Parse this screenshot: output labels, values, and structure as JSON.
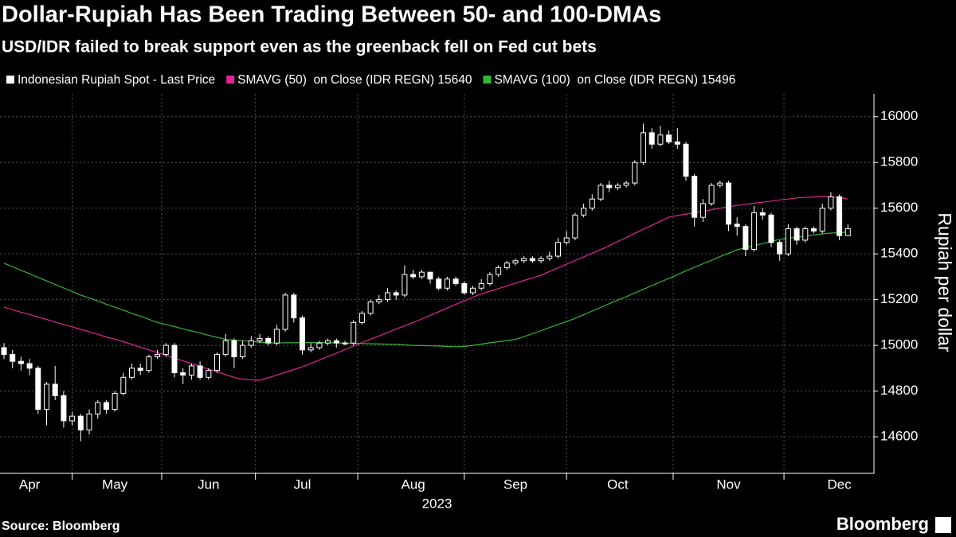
{
  "chart_data": {
    "type": "candlestick",
    "title": "Dollar-Rupiah Has Been Trading Between 50- and 100-DMAs",
    "subtitle": "USD/IDR failed to break support even as the greenback fell on Fed cut bets",
    "y_label": "Rupiah per dollar",
    "year_label": "2023",
    "source": "Source: Bloomberg",
    "brand": "Bloomberg",
    "grid": true,
    "ylim": [
      14440,
      16100
    ],
    "yticks": [
      14600,
      14800,
      15000,
      15200,
      15400,
      15600,
      15800,
      16000
    ],
    "categories": [
      null,
      null,
      null,
      "Apr",
      null,
      null,
      null,
      null,
      null,
      null,
      null,
      null,
      null,
      "May",
      null,
      null,
      null,
      null,
      null,
      null,
      null,
      null,
      null,
      null,
      "Jun",
      null,
      null,
      null,
      null,
      null,
      null,
      null,
      null,
      null,
      null,
      "Jul",
      null,
      null,
      null,
      null,
      null,
      null,
      null,
      null,
      null,
      null,
      null,
      null,
      "Aug",
      null,
      null,
      null,
      null,
      null,
      null,
      null,
      null,
      null,
      null,
      null,
      "Sep",
      null,
      null,
      null,
      null,
      null,
      null,
      null,
      null,
      null,
      null,
      null,
      "Oct",
      null,
      null,
      null,
      null,
      null,
      null,
      null,
      null,
      null,
      null,
      null,
      null,
      "Nov",
      null,
      null,
      null,
      null,
      null,
      null,
      null,
      null,
      null,
      null,
      null,
      null,
      "Dec",
      null
    ],
    "series": [
      {
        "name": "Indonesian Rupiah Spot - Last Price",
        "type": "candlestick",
        "color": "#ffffff",
        "open": [
          14990,
          14960,
          14930,
          14920,
          14900,
          14720,
          14830,
          14780,
          14670,
          14690,
          14630,
          14700,
          14750,
          14720,
          14790,
          14860,
          14900,
          14890,
          14950,
          14960,
          15000,
          14880,
          14870,
          14910,
          14860,
          14890,
          14960,
          15020,
          14950,
          15000,
          15020,
          15030,
          15010,
          15070,
          15220,
          15120,
          14980,
          14990,
          15010,
          15020,
          15010,
          15010,
          15100,
          15140,
          15190,
          15200,
          15230,
          15220,
          15310,
          15300,
          15320,
          15290,
          15250,
          15290,
          15270,
          15230,
          15250,
          15270,
          15310,
          15340,
          15360,
          15370,
          15380,
          15370,
          15380,
          15390,
          15450,
          15470,
          15570,
          15600,
          15640,
          15700,
          15690,
          15700,
          15710,
          15800,
          15930,
          15880,
          15920,
          15890,
          15880,
          15740,
          15560,
          15620,
          15700,
          15710,
          15530,
          15520,
          15420,
          15580,
          15570,
          15450,
          15400,
          15510,
          15460,
          15510,
          15500,
          15600,
          15650,
          15480
        ],
        "high": [
          15010,
          14980,
          14950,
          14940,
          14910,
          14840,
          14910,
          14800,
          14710,
          14700,
          14720,
          14760,
          14760,
          14800,
          14880,
          14920,
          14920,
          14960,
          14980,
          15010,
          15010,
          14900,
          14920,
          14930,
          14900,
          14970,
          15050,
          15030,
          15020,
          15040,
          15050,
          15040,
          15090,
          15230,
          15230,
          15130,
          15010,
          15020,
          15030,
          15030,
          15020,
          15110,
          15150,
          15200,
          15220,
          15250,
          15240,
          15350,
          15330,
          15330,
          15320,
          15300,
          15300,
          15300,
          15280,
          15260,
          15290,
          15320,
          15350,
          15370,
          15380,
          15390,
          15390,
          15390,
          15410,
          15470,
          15500,
          15580,
          15620,
          15660,
          15710,
          15720,
          15710,
          15720,
          15810,
          15970,
          15950,
          15960,
          15940,
          15950,
          15890,
          15750,
          15640,
          15710,
          15720,
          15720,
          15560,
          15530,
          15610,
          15600,
          15580,
          15460,
          15530,
          15520,
          15520,
          15520,
          15620,
          15670,
          15660,
          15530
        ],
        "low": [
          14940,
          14900,
          14890,
          14870,
          14700,
          14650,
          14760,
          14640,
          14650,
          14580,
          14610,
          14680,
          14700,
          14710,
          14780,
          14850,
          14870,
          14880,
          14940,
          14950,
          14860,
          14830,
          14850,
          14850,
          14850,
          14880,
          14950,
          14900,
          14940,
          14990,
          15010,
          15000,
          15000,
          15060,
          15100,
          14960,
          14970,
          14980,
          15000,
          14990,
          15000,
          15000,
          15090,
          15130,
          15180,
          15190,
          15200,
          15210,
          15290,
          15290,
          15270,
          15240,
          15240,
          15260,
          15220,
          15220,
          15240,
          15260,
          15300,
          15330,
          15350,
          15360,
          15360,
          15360,
          15370,
          15380,
          15440,
          15460,
          15560,
          15590,
          15630,
          15670,
          15680,
          15690,
          15700,
          15790,
          15860,
          15870,
          15880,
          15860,
          15720,
          15520,
          15540,
          15610,
          15690,
          15500,
          15480,
          15390,
          15410,
          15550,
          15430,
          15370,
          15390,
          15440,
          15450,
          15490,
          15490,
          15590,
          15460,
          15490
        ],
        "close": [
          14960,
          14930,
          14920,
          14900,
          14720,
          14830,
          14780,
          14670,
          14690,
          14630,
          14700,
          14750,
          14720,
          14790,
          14860,
          14900,
          14890,
          14950,
          14960,
          15000,
          14880,
          14870,
          14910,
          14860,
          14890,
          14960,
          15020,
          14950,
          15000,
          15020,
          15030,
          15010,
          15070,
          15220,
          15120,
          14980,
          14990,
          15010,
          15020,
          15010,
          15010,
          15100,
          15140,
          15190,
          15200,
          15230,
          15220,
          15310,
          15300,
          15320,
          15290,
          15250,
          15290,
          15270,
          15230,
          15250,
          15270,
          15310,
          15340,
          15360,
          15370,
          15380,
          15370,
          15380,
          15390,
          15450,
          15470,
          15570,
          15600,
          15640,
          15700,
          15690,
          15700,
          15710,
          15800,
          15930,
          15880,
          15920,
          15890,
          15880,
          15740,
          15560,
          15620,
          15700,
          15710,
          15530,
          15520,
          15420,
          15580,
          15570,
          15450,
          15400,
          15510,
          15460,
          15510,
          15500,
          15600,
          15650,
          15480,
          15510
        ]
      },
      {
        "name": "SMAVG (50)  on Close (IDR REGN) 15640",
        "type": "line",
        "color": "#e0249a",
        "values": [
          15167,
          15156,
          15145,
          15135,
          15124,
          15113,
          15102,
          15091,
          15081,
          15070,
          15059,
          15048,
          15037,
          15027,
          15016,
          15004,
          14992,
          14980,
          14968,
          14956,
          14944,
          14932,
          14920,
          14908,
          14896,
          14884,
          14872,
          14860,
          14852,
          14849,
          14847,
          14858,
          14870,
          14882,
          14894,
          14906,
          14921,
          14936,
          14951,
          14966,
          14981,
          14997,
          15012,
          15027,
          15041,
          15056,
          15071,
          15086,
          15100,
          15115,
          15131,
          15147,
          15163,
          15179,
          15195,
          15211,
          15225,
          15237,
          15248,
          15260,
          15272,
          15284,
          15295,
          15307,
          15323,
          15339,
          15355,
          15371,
          15387,
          15403,
          15419,
          15436,
          15454,
          15472,
          15490,
          15508,
          15525,
          15543,
          15561,
          15568,
          15574,
          15580,
          15587,
          15593,
          15600,
          15606,
          15612,
          15617,
          15622,
          15626,
          15631,
          15636,
          15640,
          15645,
          15647,
          15649,
          15651,
          15650,
          15646,
          15640
        ]
      },
      {
        "name": "SMAVG (100)  on Close (IDR REGN) 15496",
        "type": "line",
        "color": "#35b535",
        "values": [
          15359,
          15344,
          15328,
          15313,
          15297,
          15282,
          15266,
          15251,
          15236,
          15220,
          15207,
          15194,
          15180,
          15167,
          15154,
          15140,
          15127,
          15114,
          15100,
          15091,
          15082,
          15072,
          15063,
          15054,
          15044,
          15035,
          15026,
          15023,
          15020,
          15017,
          15014,
          15011,
          15010,
          15011,
          15011,
          15012,
          15012,
          15012,
          15011,
          15011,
          15010,
          15009,
          15008,
          15007,
          15006,
          15005,
          15004,
          15002,
          15000,
          14999,
          14998,
          14997,
          14995,
          14994,
          14995,
          15000,
          15005,
          15011,
          15016,
          15021,
          15026,
          15038,
          15051,
          15064,
          15078,
          15091,
          15104,
          15118,
          15134,
          15150,
          15166,
          15182,
          15198,
          15213,
          15229,
          15245,
          15261,
          15277,
          15293,
          15309,
          15326,
          15341,
          15357,
          15372,
          15388,
          15403,
          15418,
          15427,
          15436,
          15445,
          15455,
          15464,
          15468,
          15473,
          15478,
          15483,
          15488,
          15491,
          15493,
          15496
        ]
      }
    ]
  }
}
